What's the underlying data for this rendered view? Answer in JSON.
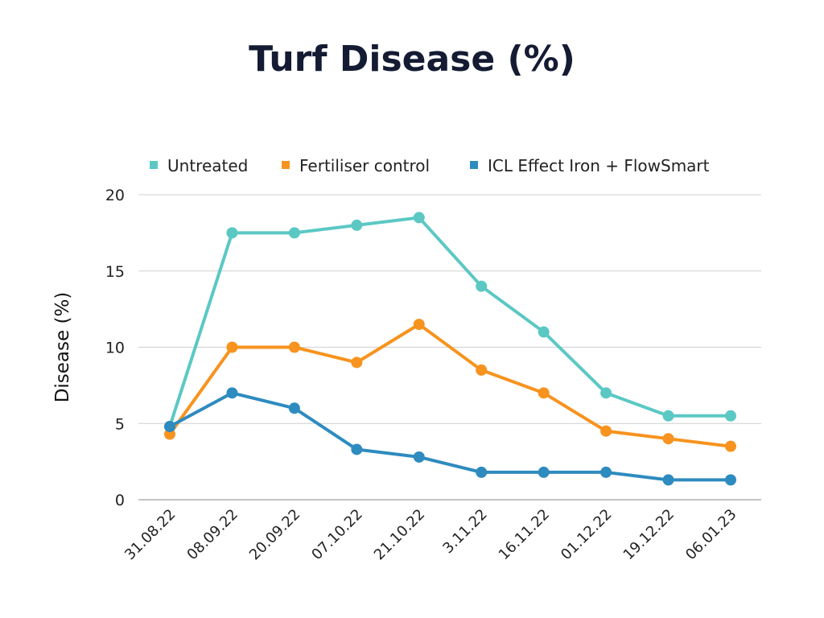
{
  "chart_data": {
    "type": "line",
    "title": "Turf Disease (%)",
    "xlabel": "",
    "ylabel": "Disease (%)",
    "ylim": [
      0,
      20
    ],
    "yticks": [
      0,
      5,
      10,
      15,
      20
    ],
    "grid": true,
    "legend_position": "top",
    "categories": [
      "31.08.22",
      "08.09.22",
      "20.09.22",
      "07.10.22",
      "21.10.22",
      "3.11.22",
      "16.11.22",
      "01.12.22",
      "19.12.22",
      "06.01.23"
    ],
    "series": [
      {
        "name": "Untreated",
        "color": "#5bc8c4",
        "values": [
          4.8,
          17.5,
          17.5,
          18,
          18.5,
          14,
          11,
          7,
          5.5,
          5.5
        ]
      },
      {
        "name": "Fertiliser control",
        "color": "#f7931e",
        "values": [
          4.3,
          10,
          10,
          9,
          11.5,
          8.5,
          7,
          4.5,
          4,
          3.5
        ]
      },
      {
        "name": "ICL Effect Iron + FlowSmart",
        "color": "#2e8bbf",
        "values": [
          4.8,
          7,
          6,
          3.3,
          2.8,
          1.8,
          1.8,
          1.8,
          1.3,
          1.3
        ]
      }
    ]
  }
}
